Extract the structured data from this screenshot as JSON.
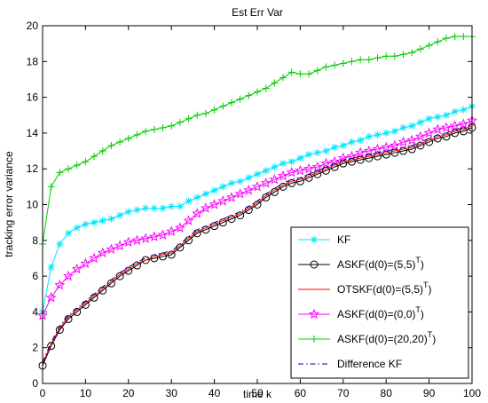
{
  "chart_data": {
    "type": "line",
    "title": "Est Err Var",
    "xlabel": "time k",
    "ylabel": "tracking error variance",
    "xlim": [
      0,
      100
    ],
    "ylim": [
      0,
      20
    ],
    "xticks": [
      "0",
      "10",
      "20",
      "30",
      "40",
      "50",
      "60",
      "70",
      "80",
      "90",
      "100"
    ],
    "yticks": [
      "0",
      "2",
      "4",
      "6",
      "8",
      "10",
      "12",
      "14",
      "16",
      "18",
      "20"
    ],
    "grid": false,
    "legend_position": "bottom-right",
    "x": [
      0,
      2,
      4,
      6,
      8,
      10,
      12,
      14,
      16,
      18,
      20,
      22,
      24,
      26,
      28,
      30,
      32,
      34,
      36,
      38,
      40,
      42,
      44,
      46,
      48,
      50,
      52,
      54,
      56,
      58,
      60,
      62,
      64,
      66,
      68,
      70,
      72,
      74,
      76,
      78,
      80,
      82,
      84,
      86,
      88,
      90,
      92,
      94,
      96,
      98,
      100
    ],
    "series": [
      {
        "name": "KF",
        "color": "#00e5ff",
        "marker": "asterisk",
        "linestyle": "solid",
        "values": [
          4.0,
          6.5,
          7.8,
          8.4,
          8.7,
          8.9,
          9.0,
          9.1,
          9.2,
          9.4,
          9.6,
          9.7,
          9.8,
          9.8,
          9.8,
          9.9,
          9.9,
          10.2,
          10.4,
          10.6,
          10.8,
          11.0,
          11.2,
          11.3,
          11.5,
          11.7,
          11.9,
          12.1,
          12.3,
          12.4,
          12.6,
          12.8,
          12.9,
          13.0,
          13.2,
          13.3,
          13.5,
          13.6,
          13.8,
          13.9,
          14.0,
          14.1,
          14.3,
          14.4,
          14.6,
          14.8,
          14.9,
          15.0,
          15.2,
          15.3,
          15.5
        ]
      },
      {
        "name": "ASKF(d(0)=(5,5)T)",
        "label_main": "ASKF(d(0)=(5,5)",
        "label_sup": "T",
        "label_tail": ")",
        "color": "#000000",
        "marker": "circle",
        "linestyle": "solid",
        "values": [
          1.0,
          2.1,
          3.0,
          3.6,
          4.0,
          4.4,
          4.8,
          5.2,
          5.6,
          6.0,
          6.3,
          6.6,
          6.9,
          7.0,
          7.1,
          7.2,
          7.6,
          8.0,
          8.4,
          8.6,
          8.8,
          9.0,
          9.2,
          9.4,
          9.7,
          10.0,
          10.4,
          10.7,
          11.0,
          11.2,
          11.3,
          11.5,
          11.7,
          11.9,
          12.1,
          12.3,
          12.4,
          12.5,
          12.6,
          12.7,
          12.8,
          12.9,
          13.0,
          13.1,
          13.3,
          13.5,
          13.7,
          13.8,
          14.0,
          14.1,
          14.3
        ]
      },
      {
        "name": "OTSKF(d(0)=(5,5)T)",
        "label_main": "OTSKF(d(0)=(5,5)",
        "label_sup": "T",
        "label_tail": ")",
        "color": "#ff0000",
        "marker": "none",
        "linestyle": "solid",
        "values": [
          1.1,
          2.2,
          3.1,
          3.7,
          4.1,
          4.5,
          4.9,
          5.3,
          5.7,
          6.1,
          6.4,
          6.7,
          6.9,
          7.1,
          7.2,
          7.3,
          7.7,
          8.1,
          8.5,
          8.7,
          8.9,
          9.1,
          9.3,
          9.5,
          9.8,
          10.1,
          10.5,
          10.8,
          11.1,
          11.3,
          11.4,
          11.6,
          11.8,
          12.0,
          12.2,
          12.4,
          12.5,
          12.6,
          12.7,
          12.8,
          12.9,
          13.0,
          13.1,
          13.2,
          13.4,
          13.6,
          13.8,
          13.9,
          14.1,
          14.2,
          14.4
        ]
      },
      {
        "name": "ASKF(d(0)=(0,0)T)",
        "label_main": "ASKF(d(0)=(0,0)",
        "label_sup": "T",
        "label_tail": ")",
        "color": "#ff00ff",
        "marker": "star",
        "linestyle": "solid",
        "values": [
          3.8,
          4.8,
          5.5,
          6.0,
          6.4,
          6.7,
          7.0,
          7.3,
          7.5,
          7.7,
          7.9,
          8.0,
          8.1,
          8.2,
          8.3,
          8.5,
          8.7,
          9.1,
          9.5,
          9.8,
          10.0,
          10.2,
          10.4,
          10.6,
          10.8,
          11.0,
          11.2,
          11.4,
          11.6,
          11.8,
          11.9,
          12.0,
          12.1,
          12.3,
          12.4,
          12.6,
          12.7,
          12.9,
          13.0,
          13.1,
          13.2,
          13.3,
          13.5,
          13.6,
          13.8,
          14.0,
          14.2,
          14.3,
          14.4,
          14.5,
          14.7
        ]
      },
      {
        "name": "ASKF(d(0)=(20,20)T)",
        "label_main": "ASKF(d(0)=(20,20)",
        "label_sup": "T",
        "label_tail": ")",
        "color": "#00cc00",
        "marker": "plus",
        "linestyle": "solid",
        "values": [
          7.8,
          11.0,
          11.8,
          12.0,
          12.2,
          12.4,
          12.7,
          13.0,
          13.3,
          13.5,
          13.7,
          13.9,
          14.1,
          14.2,
          14.3,
          14.4,
          14.6,
          14.8,
          15.0,
          15.1,
          15.3,
          15.5,
          15.7,
          15.9,
          16.1,
          16.3,
          16.5,
          16.8,
          17.1,
          17.4,
          17.3,
          17.3,
          17.5,
          17.7,
          17.8,
          17.9,
          18.0,
          18.1,
          18.1,
          18.2,
          18.3,
          18.3,
          18.4,
          18.5,
          18.7,
          18.9,
          19.1,
          19.3,
          19.4,
          19.4,
          19.4
        ]
      },
      {
        "name": "Difference KF",
        "color": "#0000aa",
        "marker": "none",
        "linestyle": "dashdot",
        "values": [
          1.2,
          2.3,
          3.2,
          3.8,
          4.2,
          4.6,
          5.0,
          5.4,
          5.8,
          6.2,
          6.5,
          6.8,
          7.0,
          7.2,
          7.3,
          7.4,
          7.8,
          8.2,
          8.6,
          8.8,
          9.0,
          9.2,
          9.4,
          9.6,
          9.9,
          10.2,
          10.6,
          10.9,
          11.2,
          11.4,
          11.5,
          11.7,
          11.9,
          12.1,
          12.3,
          12.5,
          12.6,
          12.7,
          12.8,
          12.9,
          13.0,
          13.1,
          13.2,
          13.3,
          13.5,
          13.7,
          13.9,
          14.0,
          14.2,
          14.3,
          14.5
        ]
      }
    ]
  }
}
